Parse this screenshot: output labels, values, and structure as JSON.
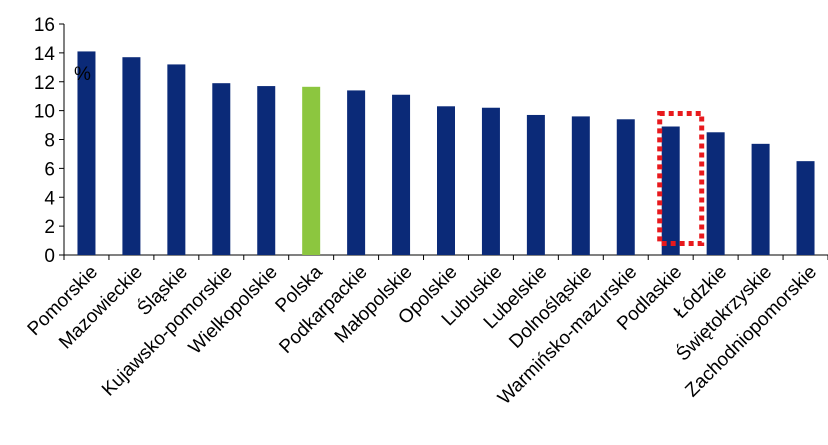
{
  "chart_data": {
    "type": "bar",
    "ylabel": "%",
    "ylim": [
      0,
      16
    ],
    "yticks": [
      "0",
      "2",
      "4",
      "6",
      "8",
      "10",
      "12",
      "14",
      "16"
    ],
    "grid": false,
    "legend": "none",
    "categories": [
      "Pomorskie",
      "Mazowieckie",
      "Śląskie",
      "Kujawsko-pomorskie",
      "Wielkopolskie",
      "Polska",
      "Podkarpackie",
      "Małopolskie",
      "Opolskie",
      "Lubuskie",
      "Lubelskie",
      "Dolnośląskie",
      "Warmińsko-mazurskie",
      "Podlaskie",
      "Łódzkie",
      "Świętokrzyskie",
      "Zachodniopomorskie"
    ],
    "values": [
      14.1,
      13.7,
      13.2,
      11.9,
      11.7,
      11.65,
      11.4,
      11.1,
      10.3,
      10.2,
      9.7,
      9.6,
      9.4,
      8.9,
      8.5,
      7.7,
      6.5
    ],
    "colors": {
      "default_bar": "#0b2a78",
      "highlight_bar": "#8cc63f",
      "highlight_box": "#e8191d"
    },
    "highlighted_category": "Polska",
    "boxed_category": "Podlaskie"
  }
}
